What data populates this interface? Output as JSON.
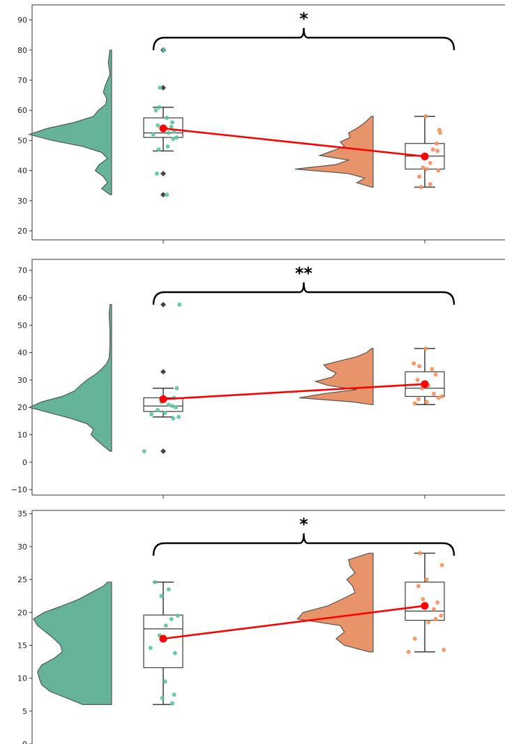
{
  "colors": {
    "group_a": "#66b39b",
    "group_b": "#e8946b",
    "jitter_a": "#5cc49a",
    "jitter_b": "#f5915c",
    "mean": "#ff0000",
    "box_edge": "#3b3b3b",
    "outlier": "#444444",
    "violin_edge": "#555555"
  },
  "chart_data": [
    {
      "type": "raincloud",
      "significance": "*",
      "ylim": [
        17,
        95
      ],
      "yticks": [
        "20",
        "30",
        "40",
        "50",
        "60",
        "70",
        "80",
        "90"
      ],
      "groups": [
        {
          "box": {
            "whisker_low": 46.5,
            "q1": 51,
            "median": 52.5,
            "q3": 57.5,
            "whisker_high": 61
          },
          "mean": 54,
          "outliers": [
            80,
            67.5,
            39,
            32
          ],
          "violin": [
            [
              32,
              0.02
            ],
            [
              34,
              0.12
            ],
            [
              36,
              0.05
            ],
            [
              38,
              0.1
            ],
            [
              40,
              0.2
            ],
            [
              42,
              0.15
            ],
            [
              44,
              0.05
            ],
            [
              46,
              0.12
            ],
            [
              48,
              0.35
            ],
            [
              50,
              0.72
            ],
            [
              52,
              1.0
            ],
            [
              54,
              0.78
            ],
            [
              56,
              0.45
            ],
            [
              58,
              0.22
            ],
            [
              60,
              0.16
            ],
            [
              62,
              0.07
            ],
            [
              64,
              0.06
            ],
            [
              66,
              0.1
            ],
            [
              68,
              0.08
            ],
            [
              70,
              0.05
            ],
            [
              72,
              0.02
            ],
            [
              74,
              0.03
            ],
            [
              76,
              0.04
            ],
            [
              78,
              0.03
            ],
            [
              80,
              0.02
            ]
          ],
          "jitter": [
            [
              80,
              0.05
            ],
            [
              67.5,
              -0.18
            ],
            [
              61,
              -0.22
            ],
            [
              60,
              -0.4
            ],
            [
              57.5,
              0.2
            ],
            [
              56,
              0.5
            ],
            [
              55,
              -0.3
            ],
            [
              54.5,
              0.45
            ],
            [
              54,
              0.15
            ],
            [
              53,
              0.6
            ],
            [
              52.5,
              0.3
            ],
            [
              52,
              -0.55
            ],
            [
              51,
              0.75
            ],
            [
              50.5,
              0.55
            ],
            [
              48,
              0.25
            ],
            [
              47,
              -0.25
            ],
            [
              39,
              -0.35
            ],
            [
              32,
              0.2
            ]
          ]
        },
        {
          "box": {
            "whisker_low": 34.5,
            "q1": 40.5,
            "median": 44.8,
            "q3": 49,
            "whisker_high": 58
          },
          "mean": 44.7,
          "outliers": [],
          "violin": [
            [
              34.5,
              0.02
            ],
            [
              36,
              0.2
            ],
            [
              37.5,
              0.1
            ],
            [
              39,
              0.3
            ],
            [
              40.5,
              0.95
            ],
            [
              42,
              0.45
            ],
            [
              43.5,
              0.3
            ],
            [
              45,
              0.65
            ],
            [
              46.5,
              0.5
            ],
            [
              48,
              0.35
            ],
            [
              49.5,
              0.4
            ],
            [
              51,
              0.28
            ],
            [
              52.5,
              0.3
            ],
            [
              54,
              0.2
            ],
            [
              55.5,
              0.12
            ],
            [
              57,
              0.06
            ],
            [
              58,
              0.02
            ]
          ],
          "jitter": [
            [
              58,
              0.05
            ],
            [
              53.5,
              0.8
            ],
            [
              52.5,
              0.85
            ],
            [
              49,
              0.65
            ],
            [
              47,
              0.45
            ],
            [
              46.5,
              0.7
            ],
            [
              44.5,
              0.1
            ],
            [
              42.5,
              0.3
            ],
            [
              41,
              -0.1
            ],
            [
              40.5,
              0.1
            ],
            [
              40,
              0.75
            ],
            [
              38,
              -0.3
            ],
            [
              35.5,
              0.3
            ],
            [
              34.5,
              -0.2
            ]
          ]
        }
      ]
    },
    {
      "type": "raincloud",
      "significance": "**",
      "ylim": [
        -12,
        74
      ],
      "yticks": [
        "−10",
        "0",
        "10",
        "20",
        "30",
        "40",
        "50",
        "60",
        "70"
      ],
      "groups": [
        {
          "box": {
            "whisker_low": 16.5,
            "q1": 18.5,
            "median": 20.5,
            "q3": 23.5,
            "whisker_high": 27
          },
          "mean": 23,
          "outliers": [
            57.5,
            33,
            4
          ],
          "violin": [
            [
              4,
              0.02
            ],
            [
              6,
              0.1
            ],
            [
              8,
              0.18
            ],
            [
              10,
              0.25
            ],
            [
              12,
              0.22
            ],
            [
              14,
              0.3
            ],
            [
              16,
              0.5
            ],
            [
              18,
              0.75
            ],
            [
              20,
              1.0
            ],
            [
              22,
              0.85
            ],
            [
              24,
              0.6
            ],
            [
              26,
              0.45
            ],
            [
              28,
              0.38
            ],
            [
              30,
              0.3
            ],
            [
              32,
              0.2
            ],
            [
              34,
              0.12
            ],
            [
              36,
              0.06
            ],
            [
              38,
              0.03
            ],
            [
              42,
              0.02
            ],
            [
              48,
              0.02
            ],
            [
              54,
              0.03
            ],
            [
              57.5,
              0.02
            ]
          ],
          "jitter": [
            [
              57.5,
              0.9
            ],
            [
              27,
              0.75
            ],
            [
              23.5,
              0.6
            ],
            [
              22,
              -0.1
            ],
            [
              21,
              0.3
            ],
            [
              20.5,
              0.5
            ],
            [
              20,
              0.7
            ],
            [
              19,
              -0.3
            ],
            [
              18,
              0.1
            ],
            [
              17.5,
              -0.65
            ],
            [
              16.5,
              0.85
            ],
            [
              16,
              0.55
            ],
            [
              4,
              -1.05
            ]
          ]
        },
        {
          "box": {
            "whisker_low": 21,
            "q1": 24,
            "median": 27,
            "q3": 33,
            "whisker_high": 41.5
          },
          "mean": 28.5,
          "outliers": [],
          "violin": [
            [
              21,
              0.02
            ],
            [
              22,
              0.25
            ],
            [
              23.5,
              0.9
            ],
            [
              25,
              0.6
            ],
            [
              26.5,
              0.2
            ],
            [
              28,
              0.55
            ],
            [
              29.5,
              0.7
            ],
            [
              31,
              0.5
            ],
            [
              32.5,
              0.45
            ],
            [
              34,
              0.55
            ],
            [
              35.5,
              0.6
            ],
            [
              37,
              0.4
            ],
            [
              38.5,
              0.2
            ],
            [
              40,
              0.08
            ],
            [
              41.5,
              0.02
            ]
          ],
          "jitter": [
            [
              41.5,
              0.05
            ],
            [
              36,
              -0.6
            ],
            [
              35,
              -0.3
            ],
            [
              34,
              0.4
            ],
            [
              32,
              0.6
            ],
            [
              30,
              -0.4
            ],
            [
              28,
              0.2
            ],
            [
              27,
              -0.15
            ],
            [
              25,
              0.5
            ],
            [
              24,
              0.95
            ],
            [
              23.5,
              0.75
            ],
            [
              23,
              -0.35
            ],
            [
              22,
              0.1
            ],
            [
              21.5,
              -0.55
            ]
          ]
        }
      ]
    },
    {
      "type": "raincloud",
      "significance": "*",
      "ylim": [
        0,
        35.5
      ],
      "yticks": [
        "0",
        "5",
        "10",
        "15",
        "20",
        "25",
        "30",
        "35"
      ],
      "groups": [
        {
          "box": {
            "whisker_low": 6,
            "q1": 11.6,
            "median": 17.5,
            "q3": 19.6,
            "whisker_high": 24.6
          },
          "mean": 16,
          "outliers": [],
          "violin": [
            [
              6,
              0.35
            ],
            [
              7,
              0.55
            ],
            [
              8,
              0.75
            ],
            [
              9,
              0.85
            ],
            [
              10,
              0.88
            ],
            [
              11,
              0.9
            ],
            [
              12,
              0.85
            ],
            [
              13,
              0.7
            ],
            [
              14,
              0.6
            ],
            [
              15,
              0.62
            ],
            [
              16,
              0.7
            ],
            [
              17,
              0.8
            ],
            [
              18,
              0.9
            ],
            [
              19,
              0.95
            ],
            [
              20,
              0.82
            ],
            [
              21,
              0.6
            ],
            [
              22,
              0.4
            ],
            [
              23,
              0.25
            ],
            [
              24,
              0.1
            ],
            [
              24.6,
              0.05
            ]
          ],
          "jitter": [
            [
              24.6,
              -0.45
            ],
            [
              23.5,
              0.3
            ],
            [
              22.5,
              -0.1
            ],
            [
              19.5,
              0.8
            ],
            [
              19,
              0.45
            ],
            [
              18,
              0.15
            ],
            [
              16.5,
              -0.2
            ],
            [
              14.6,
              -0.7
            ],
            [
              13.8,
              0.65
            ],
            [
              9.5,
              0.1
            ],
            [
              7.5,
              0.6
            ],
            [
              7,
              -0.05
            ],
            [
              6.2,
              0.5
            ]
          ]
        },
        {
          "box": {
            "whisker_low": 14,
            "q1": 18.8,
            "median": 20.2,
            "q3": 24.6,
            "whisker_high": 29
          },
          "mean": 21,
          "outliers": [],
          "violin": [
            [
              14,
              0.05
            ],
            [
              15,
              0.35
            ],
            [
              16,
              0.45
            ],
            [
              17,
              0.35
            ],
            [
              18,
              0.4
            ],
            [
              19,
              0.92
            ],
            [
              20,
              0.85
            ],
            [
              21,
              0.55
            ],
            [
              22,
              0.38
            ],
            [
              23,
              0.22
            ],
            [
              24,
              0.25
            ],
            [
              25,
              0.32
            ],
            [
              26,
              0.22
            ],
            [
              27,
              0.28
            ],
            [
              28,
              0.3
            ],
            [
              29,
              0.05
            ]
          ],
          "jitter": [
            [
              29,
              -0.25
            ],
            [
              27.2,
              0.95
            ],
            [
              25,
              0.1
            ],
            [
              24,
              -0.35
            ],
            [
              22,
              -0.1
            ],
            [
              21.5,
              0.7
            ],
            [
              20.5,
              0.5
            ],
            [
              19.5,
              0.9
            ],
            [
              19,
              0.6
            ],
            [
              18.5,
              0.2
            ],
            [
              16,
              -0.55
            ],
            [
              14.3,
              1.05
            ],
            [
              14,
              -0.9
            ]
          ]
        }
      ]
    }
  ]
}
